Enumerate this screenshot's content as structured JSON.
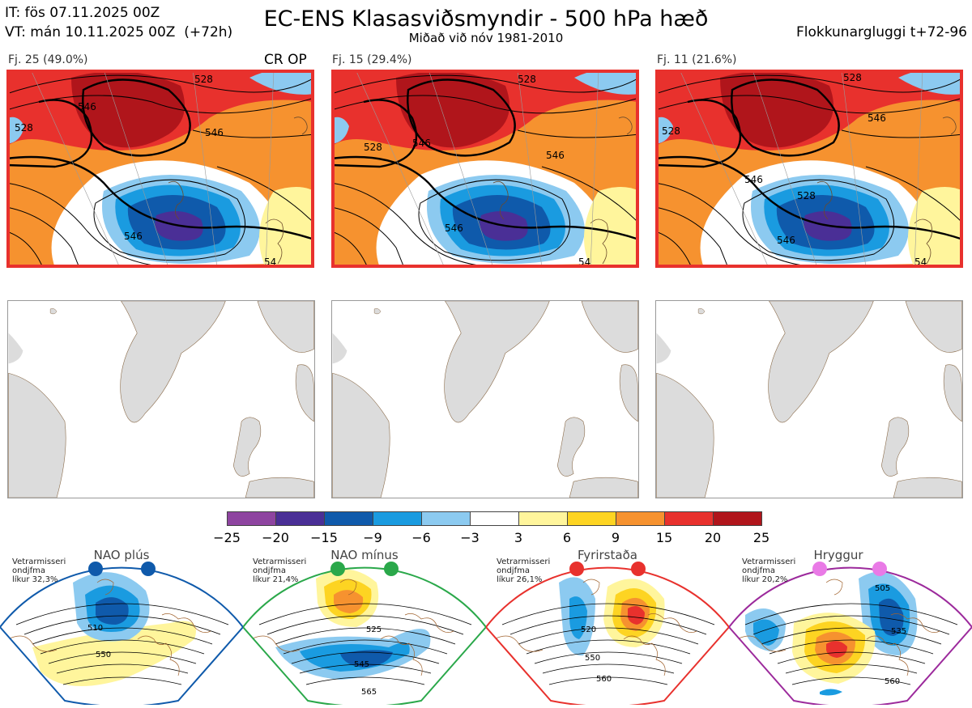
{
  "header": {
    "init_time": "IT: fös 07.11.2025 00Z",
    "valid_time": "VT: mán 10.11.2025 00Z  (+72h)",
    "title": "EC-ENS Klasasviðsmyndir - 500 hPa hæð",
    "subtitle": "Miðað við nóv 1981-2010",
    "window": "Flokkunargluggi t+72-96"
  },
  "clusters": [
    {
      "label": "Fj. 25 (49.0%)",
      "tag": "CR OP",
      "contours": [
        "528",
        "546",
        "546",
        "528",
        "546",
        "54"
      ]
    },
    {
      "label": "Fj. 15 (29.4%)",
      "tag": "",
      "contours": [
        "528",
        "528",
        "546",
        "546",
        "546",
        "54"
      ]
    },
    {
      "label": "Fj. 11 (21.6%)",
      "tag": "",
      "contours": [
        "528",
        "528",
        "546",
        "546",
        "528",
        "546",
        "54"
      ]
    }
  ],
  "colorbar": {
    "colors": [
      "#8e44a0",
      "#4a2f96",
      "#0f5aab",
      "#1a9be0",
      "#8ccaf0",
      "#ffffff",
      "#fff59c",
      "#fdd422",
      "#f6922f",
      "#e8312d",
      "#b0151b"
    ],
    "labels": [
      "−25",
      "−20",
      "−15",
      "−9",
      "−6",
      "−3",
      "3",
      "6",
      "9",
      "15",
      "20",
      "25"
    ]
  },
  "regimes": [
    {
      "name": "NAO plús",
      "note_line1": "Vetrarmisseri",
      "note_line2": "ondjfma",
      "note_line3": "líkur 32,3%",
      "color": "#0f5aab",
      "contours": [
        "510",
        "550"
      ]
    },
    {
      "name": "NAO mínus",
      "note_line1": "Vetrarmisseri",
      "note_line2": "ondjfma",
      "note_line3": "líkur 21,4%",
      "color": "#2aa84a",
      "contours": [
        "525",
        "545",
        "565"
      ]
    },
    {
      "name": "Fyrirstaða",
      "note_line1": "Vetrarmisseri",
      "note_line2": "ondjfma",
      "note_line3": "líkur 26,1%",
      "color": "#e8312d",
      "contours": [
        "520",
        "550",
        "560"
      ]
    },
    {
      "name": "Hryggur",
      "note_line1": "Vetrarmisseri",
      "note_line2": "ondjfma",
      "note_line3": "líkur 20,2%",
      "color": "#9c2a9c",
      "contours": [
        "505",
        "535",
        "560"
      ]
    }
  ]
}
